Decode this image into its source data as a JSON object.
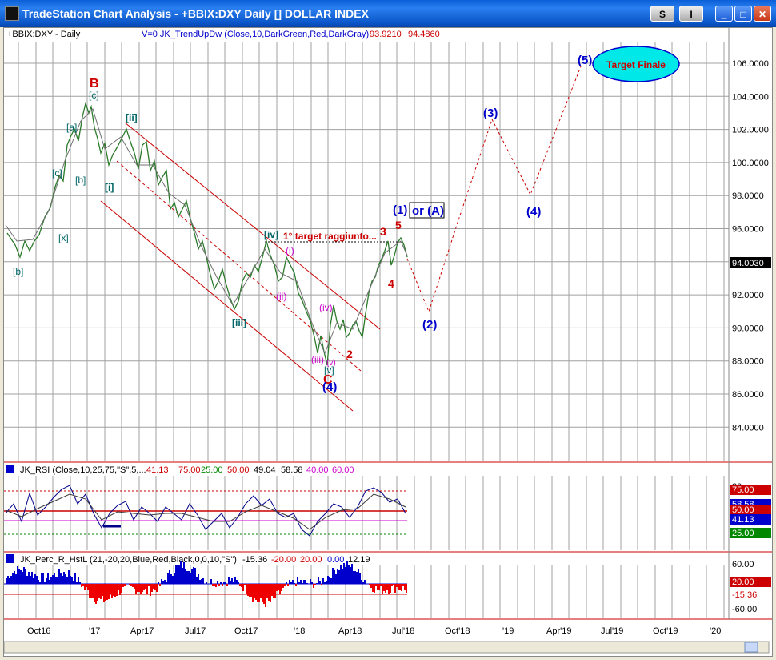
{
  "window": {
    "title": "TradeStation Chart Analysis - +BBIX:DXY Daily [] DOLLAR INDEX",
    "buttons": {
      "s": "S",
      "i": "I",
      "minimize": "_",
      "maximize": "□",
      "close": "✕"
    }
  },
  "price_panel": {
    "symbol": "+BBIX:DXY - Daily",
    "indicator": "V=0  JK_TrendUpDw  (Close,10,DarkGreen,Red,DarkGray)",
    "val1": "93.9210",
    "val2": "94.4860",
    "last_price": "94.0030",
    "y_ticks": [
      "106.0000",
      "104.0000",
      "102.0000",
      "100.0000",
      "98.0000",
      "96.0000",
      "94.0000",
      "92.0000",
      "90.0000",
      "88.0000",
      "86.0000",
      "84.0000"
    ],
    "target_label": "Target Finale",
    "target_text": "1° target raggiunto...",
    "wave_labels": {
      "B": "B",
      "C": "C",
      "c": "[c]",
      "a": "[a]",
      "c2": "[c]",
      "b": "[b]",
      "x": "[x]",
      "b2": "[b]",
      "ii": "[ii]",
      "i": "[i]",
      "iii": "[iii]",
      "iv": "[iv]",
      "v": "[v]",
      "pi": "(i)",
      "pii": "(ii)",
      "piii": "(iii)",
      "piv": "(iv)",
      "pv": "(v)",
      "n2": "2",
      "n3": "3",
      "n4": "4",
      "n5": "5",
      "w4a": "(4)",
      "w1": "(1)",
      "orA": "or (A)",
      "w2": "(2)",
      "w3": "(3)",
      "w4b": "(4)",
      "w5": "(5)"
    }
  },
  "rsi_panel": {
    "title": "JK_RSI (Close,10,25,75,\"S\",5,...",
    "values": [
      "41.13",
      "75.00",
      "25.00",
      "50.00",
      "49.04",
      "58.58",
      "40.00",
      "60.00"
    ],
    "y_ticks": [
      "80",
      "75.00",
      "58.58",
      "50.00",
      "41.13",
      "25.00"
    ]
  },
  "perc_panel": {
    "title": "JK_Perc_R_HstL (21,-20,20,Blue,Red,Black,0,0,10,\"S\")",
    "values": [
      "-15.36",
      "-20.00",
      "20.00",
      "0.00",
      "12.19"
    ],
    "y_ticks": [
      "60.00",
      "20.00",
      "-15.36",
      "-60.00"
    ]
  },
  "x_axis": [
    "Oct16",
    "'17",
    "Apr17",
    "Jul17",
    "Oct17",
    "'18",
    "Apr18",
    "Jul'18",
    "Oct'18",
    "'19",
    "Apr'19",
    "Jul'19",
    "Oct'19",
    "'20"
  ],
  "colors": {
    "titlebar": "#0a5fd8",
    "grid": "#a0a0a0",
    "wave_blue": "#0000cc",
    "wave_red": "#cc0000",
    "teal": "#006666",
    "target_fill": "#00e8e8"
  }
}
